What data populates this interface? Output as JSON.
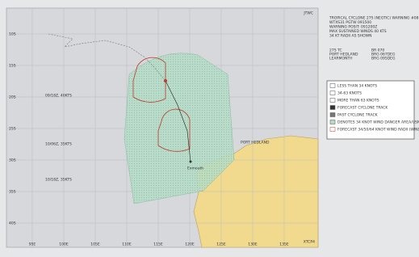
{
  "header": {
    "logo": "JTWC",
    "product": "XTCP4"
  },
  "info_lines": [
    "TROPICAL CYCLONE 27S (NEGTIC) WARNING #08",
    "WTXS31 PGTW 091500",
    "WARNING POSIT: 091200Z",
    "MAX SUSTAINED WINDS 40 KTS",
    "34 KT RADII AS SHOWN"
  ],
  "stations": [
    "27S TC",
    "PORT HEDLAND",
    "LEARMONTH"
  ],
  "stations_right": [
    "BR 070",
    "BRG 067DEG",
    "BRG 095DEG"
  ],
  "track_labels": [
    "09/18Z, 40KTS",
    "10/06Z, 35KTS",
    "10/18Z, 35KTS"
  ],
  "lat_labels": [
    "10S",
    "15S",
    "20S",
    "25S",
    "30S",
    "35S",
    "40S"
  ],
  "lon_labels": [
    "95E",
    "100E",
    "105E",
    "110E",
    "115E",
    "120E",
    "125E",
    "130E",
    "135E"
  ],
  "legend": [
    "LESS THAN 34 KNOTS",
    "34-63 KNOTS",
    "MORE THAN 63 KNOTS",
    "FORECAST CYCLONE TRACK",
    "PAST CYCLONE TRACK",
    "DENOTES 34 KNOT WIND DANGER AREA/USN SHIP AVOIDANCE AREA",
    "FORECAST 34/50/64 KNOT WIND RADII (WINDS VALID OVER OPEN OCEAN ONLY)"
  ],
  "places": [
    "PORT HEDLAND",
    "Exmouth"
  ]
}
